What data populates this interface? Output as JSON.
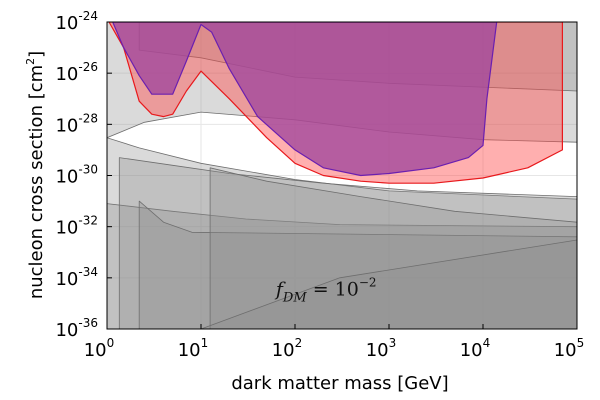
{
  "chart_data": {
    "type": "area",
    "xlabel": "dark matter mass [GeV]",
    "ylabel": "nucleon cross section [cm",
    "ylabel_sup": "2",
    "ylabel_close": "]",
    "xscale": "log",
    "yscale": "log",
    "xlim": [
      1,
      100000
    ],
    "ylim": [
      1e-36,
      1e-24
    ],
    "grid": true,
    "legend": "none",
    "xticks": [
      {
        "base": "10",
        "exp": "0"
      },
      {
        "base": "10",
        "exp": "1"
      },
      {
        "base": "10",
        "exp": "2"
      },
      {
        "base": "10",
        "exp": "3"
      },
      {
        "base": "10",
        "exp": "4"
      },
      {
        "base": "10",
        "exp": "5"
      }
    ],
    "yticks": [
      {
        "base": "10",
        "exp": "-24"
      },
      {
        "base": "10",
        "exp": "-26"
      },
      {
        "base": "10",
        "exp": "-28"
      },
      {
        "base": "10",
        "exp": "-30"
      },
      {
        "base": "10",
        "exp": "-32"
      },
      {
        "base": "10",
        "exp": "-34"
      },
      {
        "base": "10",
        "exp": "-36"
      }
    ],
    "annotation": {
      "text_main": "f",
      "text_sub": "DM",
      "text_eq": " = 10",
      "text_exp": "−2",
      "x": 80,
      "y": 2e-35
    },
    "colors": {
      "gray_fill": "#8c8c8c",
      "gray_line": "#6e6e6e",
      "red_fill": "#ff4d4d",
      "red_line": "#e8191c",
      "purple_fill": "#a0479c",
      "purple_line": "#6a1fb0"
    },
    "series": [
      {
        "kind": "gray",
        "points": [
          [
            1,
            1e-36
          ],
          [
            1,
            3e-29
          ],
          [
            2.2,
            1.2e-29
          ],
          [
            10,
            3e-30
          ],
          [
            100,
            7e-31
          ],
          [
            1000,
            2.5e-31
          ],
          [
            100000,
            1.2e-31
          ],
          [
            100000,
            1e-36
          ]
        ]
      },
      {
        "kind": "gray",
        "points": [
          [
            1,
            1e-36
          ],
          [
            1,
            8e-32
          ],
          [
            5,
            4e-32
          ],
          [
            30,
            2e-32
          ],
          [
            300,
            1.2e-32
          ],
          [
            100000,
            1e-32
          ],
          [
            100000,
            1e-36
          ]
        ]
      },
      {
        "kind": "gray",
        "points": [
          [
            1.35,
            1e-36
          ],
          [
            1.35,
            5e-30
          ],
          [
            5,
            2.5e-30
          ],
          [
            20,
            1.2e-30
          ],
          [
            200,
            5e-31
          ],
          [
            2000,
            2.5e-31
          ],
          [
            100000,
            1.5e-31
          ],
          [
            100000,
            1e-36
          ]
        ]
      },
      {
        "kind": "gray",
        "points": [
          [
            2.2,
            1e-36
          ],
          [
            2.2,
            1e-31
          ],
          [
            4,
            1.5e-32
          ],
          [
            8,
            6e-33
          ],
          [
            100000,
            4e-33
          ],
          [
            100000,
            1e-36
          ]
        ]
      },
      {
        "kind": "gray",
        "points": [
          [
            12.5,
            1e-36
          ],
          [
            12.5,
            2e-30
          ],
          [
            50,
            6e-31
          ],
          [
            500,
            1.5e-31
          ],
          [
            5000,
            4e-32
          ],
          [
            100000,
            1.5e-32
          ],
          [
            100000,
            1e-36
          ]
        ]
      },
      {
        "kind": "gray",
        "points": [
          [
            10,
            1e-36
          ],
          [
            300,
            1e-34
          ],
          [
            100000,
            3e-33
          ],
          [
            100000,
            1e-36
          ]
        ]
      },
      {
        "kind": "gray",
        "points": [
          [
            1,
            1e-24
          ],
          [
            1,
            3e-29
          ],
          [
            2.5,
            1.2e-28
          ],
          [
            10,
            3e-28
          ],
          [
            100,
            1.5e-28
          ],
          [
            1000,
            5e-29
          ],
          [
            10000,
            2.5e-29
          ],
          [
            100000,
            2e-29
          ],
          [
            100000,
            1e-24
          ]
        ]
      },
      {
        "kind": "gray",
        "points": [
          [
            2.2,
            1e-24
          ],
          [
            2.2,
            8e-26
          ],
          [
            10,
            4e-26
          ],
          [
            100,
            7e-27
          ],
          [
            1000,
            4e-27
          ],
          [
            100000,
            2e-27
          ],
          [
            100000,
            1e-24
          ]
        ]
      },
      {
        "kind": "red",
        "points": [
          [
            1.05,
            1e-24
          ],
          [
            1.5,
            1e-25
          ],
          [
            2.2,
            8e-28
          ],
          [
            3,
            2.5e-28
          ],
          [
            4,
            2e-28
          ],
          [
            5,
            2.5e-28
          ],
          [
            7,
            2e-27
          ],
          [
            10,
            1.2e-26
          ],
          [
            20,
            1e-27
          ],
          [
            50,
            3e-29
          ],
          [
            100,
            3e-30
          ],
          [
            200,
            1e-30
          ],
          [
            500,
            6e-31
          ],
          [
            1000,
            5e-31
          ],
          [
            3000,
            5e-31
          ],
          [
            10000,
            8e-31
          ],
          [
            30000,
            2e-30
          ],
          [
            70000,
            1e-29
          ],
          [
            70000,
            1e-24
          ]
        ]
      },
      {
        "kind": "purple",
        "points": [
          [
            1.15,
            1e-24
          ],
          [
            1.5,
            1e-25
          ],
          [
            2.2,
            8e-27
          ],
          [
            3,
            1.5e-27
          ],
          [
            5,
            1.5e-27
          ],
          [
            7,
            3e-26
          ],
          [
            10,
            8e-25
          ],
          [
            13,
            4e-25
          ],
          [
            20,
            1.5e-26
          ],
          [
            40,
            2e-28
          ],
          [
            100,
            1e-29
          ],
          [
            200,
            2e-30
          ],
          [
            500,
            1e-30
          ],
          [
            1000,
            1.2e-30
          ],
          [
            3000,
            2e-30
          ],
          [
            7000,
            5e-30
          ],
          [
            10000,
            1.5e-29
          ],
          [
            11000,
            1e-27
          ],
          [
            14000,
            1e-24
          ]
        ]
      }
    ]
  }
}
